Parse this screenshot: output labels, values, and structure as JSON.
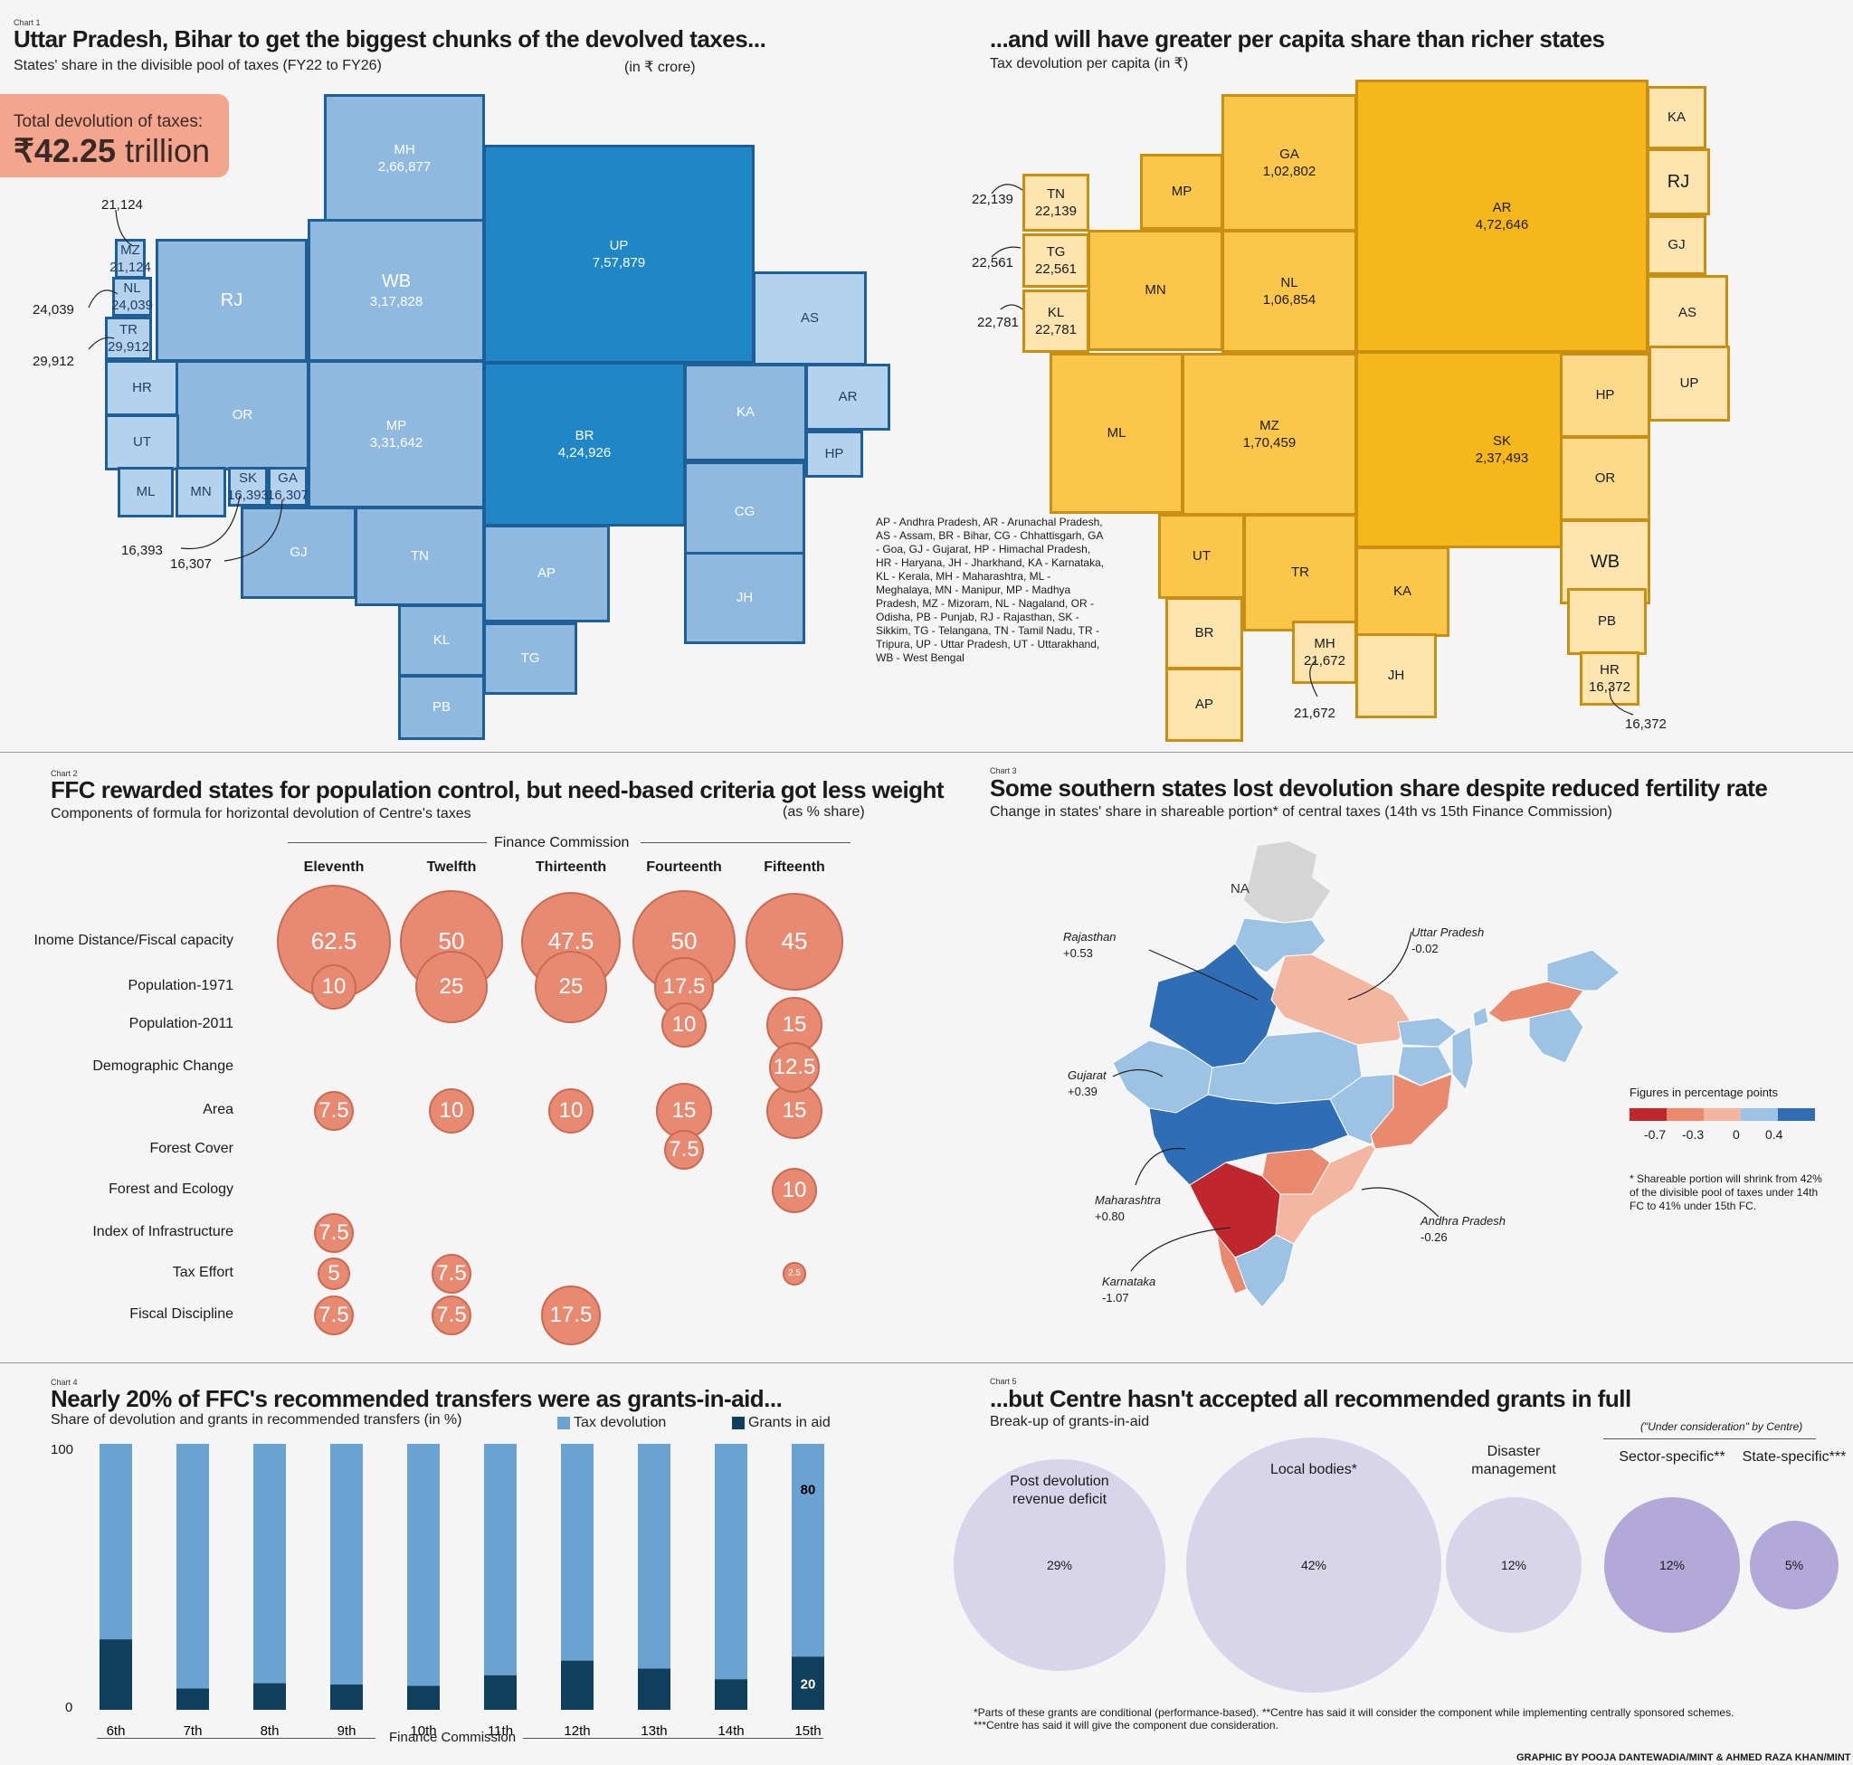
{
  "chart1": {
    "tag": "Chart 1",
    "title": "Uttar Pradesh, Bihar to get the biggest chunks of the devolved taxes...",
    "subtitle": "States' share in the divisible pool of taxes (FY22 to FY26)",
    "unit": "(in ₹ crore)",
    "total_label": "Total devolution of taxes:",
    "total_value": "₹42.25",
    "total_unit": " trillion",
    "chart_data": {
      "type": "table",
      "title": "Uttar Pradesh, Bihar to get the biggest chunks of the devolved taxes...",
      "unit": "in ₹ crore",
      "values": {
        "UP": "7,57,879",
        "BR": "4,24,926",
        "MP": "3,31,642",
        "WB": "3,17,828",
        "MH": "2,66,877",
        "MZ": "21,124",
        "NL": "24,039",
        "TR": "29,912",
        "SK": "16,393",
        "GA": "16,307"
      }
    },
    "states": [
      "MH",
      "RJ",
      "WB",
      "UP",
      "AS",
      "MZ",
      "NL",
      "TR",
      "HR",
      "OR",
      "UT",
      "MP",
      "BR",
      "KA",
      "AR",
      "HP",
      "ML",
      "MN",
      "SK",
      "GA",
      "GJ",
      "TN",
      "AP",
      "CG",
      "JH",
      "KL",
      "TG",
      "PB"
    ],
    "values": {
      "MH": "2,66,877",
      "WB": "3,17,828",
      "UP": "7,57,879",
      "MP": "3,31,642",
      "BR": "4,24,926",
      "MZ": "21,124",
      "NL": "24,039",
      "TR": "29,912",
      "SK": "16,393",
      "GA": "16,307"
    }
  },
  "chart1b": {
    "title": "...and will have greater per capita share than richer states",
    "subtitle": "Tax devolution per capita (in ₹)",
    "chart_data": {
      "type": "table",
      "title": "...and will have greater per capita share than richer states",
      "unit": "₹",
      "values": {
        "AR": "4,72,646",
        "SK": "2,37,493",
        "MZ": "1,70,459",
        "NL": "1,06,854",
        "GA": "1,02,802",
        "TN": "22,139",
        "TG": "22,561",
        "KL": "22,781",
        "MH": "21,672",
        "HR": "16,372"
      }
    },
    "states": [
      "TN",
      "MP",
      "GA",
      "AR",
      "KA",
      "RJ",
      "GJ",
      "TG",
      "MN",
      "NL",
      "AS",
      "KL",
      "UP",
      "ML",
      "MZ",
      "SK",
      "HP",
      "OR",
      "UT",
      "TR",
      "KA",
      "WB",
      "BR",
      "MH",
      "JH",
      "PB",
      "AP",
      "HR"
    ],
    "values": {
      "GA": "1,02,802",
      "AR": "4,72,646",
      "NL": "1,06,854",
      "MZ": "1,70,459",
      "SK": "2,37,493",
      "TN": "22,139",
      "TG": "22,561",
      "KL": "22,781",
      "MH": "21,672",
      "HR": "16,372"
    }
  },
  "legend_abbr": "AP - Andhra Pradesh, AR - Arunachal Pradesh, AS - Assam, BR - Bihar, CG - Chhattisgarh, GA - Goa, GJ - Gujarat, HP - Himachal Pradesh, HR - Haryana, JH - Jharkhand, KA - Karnataka, KL - Kerala, MH - Maharashtra, ML - Meghalaya, MN - Manipur, MP - Madhya Pradesh, MZ - Mizoram, NL - Nagaland, OR - Odisha, PB - Punjab, RJ - Rajasthan, SK - Sikkim, TG - Telangana, TN - Tamil Nadu, TR - Tripura, UP - Uttar Pradesh, UT - Uttarakhand, WB - West Bengal",
  "chart2": {
    "tag": "Chart 2",
    "title": "FFC rewarded states for population control, but need-based criteria got less weight",
    "subtitle": "Components of formula for horizontal devolution of Centre's taxes",
    "unit": "(as % share)",
    "group_label": "Finance Commission",
    "chart_data": {
      "type": "scatter",
      "title": "FFC rewarded states for population control, but need-based criteria got less weight",
      "columns": [
        "Eleventh",
        "Twelfth",
        "Thirteenth",
        "Fourteenth",
        "Fifteenth"
      ],
      "rows": [
        "Inome Distance/Fiscal capacity",
        "Population-1971",
        "Population-2011",
        "Demographic Change",
        "Area",
        "Forest Cover",
        "Forest and Ecology",
        "Index of Infrastructure",
        "Tax Effort",
        "Fiscal Discipline"
      ],
      "values": [
        [
          62.5,
          50,
          47.5,
          50,
          45
        ],
        [
          10,
          25,
          25,
          17.5,
          null
        ],
        [
          null,
          null,
          null,
          10,
          15
        ],
        [
          null,
          null,
          null,
          null,
          12.5
        ],
        [
          7.5,
          10,
          10,
          15,
          15
        ],
        [
          null,
          null,
          null,
          7.5,
          null
        ],
        [
          null,
          null,
          null,
          null,
          10
        ],
        [
          7.5,
          null,
          null,
          null,
          null
        ],
        [
          5,
          7.5,
          null,
          null,
          2.5
        ],
        [
          7.5,
          7.5,
          17.5,
          null,
          null
        ]
      ]
    }
  },
  "chart3": {
    "tag": "Chart 3",
    "title": "Some southern states lost devolution share despite reduced fertility rate",
    "subtitle": "Change in states' share in shareable portion* of central taxes (14th vs 15th Finance Commission)",
    "legend_title": "Figures in percentage points",
    "legend_ticks": [
      "-0.7",
      "-0.3",
      "0",
      "0.4"
    ],
    "legend_colors": [
      "#c0272d",
      "#e98a6e",
      "#f3b6a0",
      "#9cc3e3",
      "#2f6db5"
    ],
    "note": "* Shareable portion will shrink from 42% of the divisible pool of taxes under 14th FC to 41% under 15th FC.",
    "na": "NA",
    "callouts": [
      {
        "name": "Rajasthan",
        "value": "+0.53"
      },
      {
        "name": "Uttar Pradesh",
        "value": "-0.02"
      },
      {
        "name": "Gujarat",
        "value": "+0.39"
      },
      {
        "name": "Maharashtra",
        "value": "+0.80"
      },
      {
        "name": "Andhra Pradesh",
        "value": "-0.26"
      },
      {
        "name": "Karnataka",
        "value": "-1.07"
      }
    ],
    "chart_data": {
      "type": "table",
      "title": "Some southern states lost devolution share despite reduced fertility rate",
      "unit": "percentage points",
      "values": {
        "Rajasthan": 0.53,
        "Uttar Pradesh": -0.02,
        "Gujarat": 0.39,
        "Maharashtra": 0.8,
        "Andhra Pradesh": -0.26,
        "Karnataka": -1.07
      }
    }
  },
  "chart4": {
    "tag": "Chart 4",
    "title": "Nearly 20% of FFC's recommended transfers were as grants-in-aid...",
    "subtitle": "Share of devolution and grants in recommended transfers (in %)",
    "legend": [
      "Tax devolution",
      "Grants in aid"
    ],
    "colors": {
      "tax": "#6aa3d2",
      "grants": "#0f3f5a"
    },
    "xlabel": "Finance Commission",
    "ymax_label": "100",
    "ymin_label": "0",
    "label_tax_last": "80",
    "label_grants_last": "20",
    "chart_data": {
      "type": "bar",
      "title": "Nearly 20% of FFC's recommended transfers were as grants-in-aid...",
      "xlabel": "Finance Commission",
      "ylim": [
        0,
        100
      ],
      "categories": [
        "6th",
        "7th",
        "8th",
        "9th",
        "10th",
        "11th",
        "12th",
        "13th",
        "14th",
        "15th"
      ],
      "series": [
        {
          "name": "Tax devolution",
          "values": [
            73.5,
            92,
            90,
            90.5,
            91,
            87,
            81.5,
            84.5,
            88.5,
            80
          ]
        },
        {
          "name": "Grants in aid",
          "values": [
            26.5,
            8,
            10,
            9.5,
            9,
            13,
            18.5,
            15.5,
            11.5,
            20
          ]
        }
      ]
    }
  },
  "chart5": {
    "tag": "Chart 5",
    "title": "...but Centre hasn't accepted all recommended grants in full",
    "subtitle": "Break-up of grants-in-aid",
    "under_consideration": "(\"Under consideration\" by Centre)",
    "chart_data": {
      "type": "pie",
      "title": "...but Centre hasn't accepted all recommended grants in full",
      "categories": [
        "Post devolution revenue deficit",
        "Local bodies*",
        "Disaster management",
        "Sector-specific**",
        "State-specific***"
      ],
      "values": [
        29,
        42,
        12,
        12,
        5
      ]
    },
    "labels": [
      "Post devolution\nrevenue deficit",
      "Local bodies*",
      "Disaster\nmanagement",
      "Sector-specific**",
      "State-specific***"
    ],
    "pct": [
      "29%",
      "42%",
      "12%",
      "12%",
      "5%"
    ],
    "footnote1": "*Parts of these grants are conditional (performance-based). **Centre has said it will consider the component while implementing centrally sponsored schemes.",
    "footnote2": "***Centre has said it will give the component due consideration."
  },
  "credit": "GRAPHIC BY POOJA DANTEWADIA/MINT & AHMED RAZA KHAN/MINT"
}
